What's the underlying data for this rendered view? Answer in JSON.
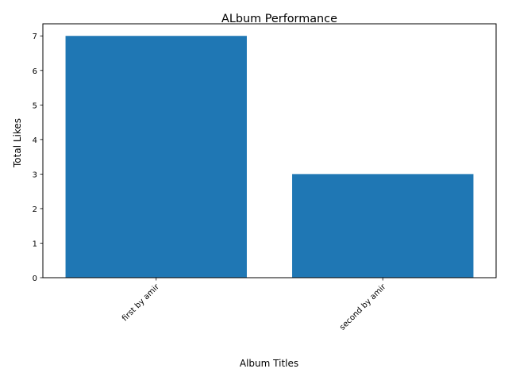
{
  "chart_data": {
    "type": "bar",
    "title": "ALbum Performance",
    "xlabel": "Album Titles",
    "ylabel": "Total Likes",
    "categories": [
      "first by amir",
      "second by amir"
    ],
    "values": [
      7,
      3
    ],
    "ylim": [
      0,
      7.35
    ],
    "yticks": [
      "0",
      "1",
      "2",
      "3",
      "4",
      "5",
      "6",
      "7"
    ],
    "bar_color": "#1f77b4",
    "grid": false,
    "xtick_rotation_deg": 45
  }
}
